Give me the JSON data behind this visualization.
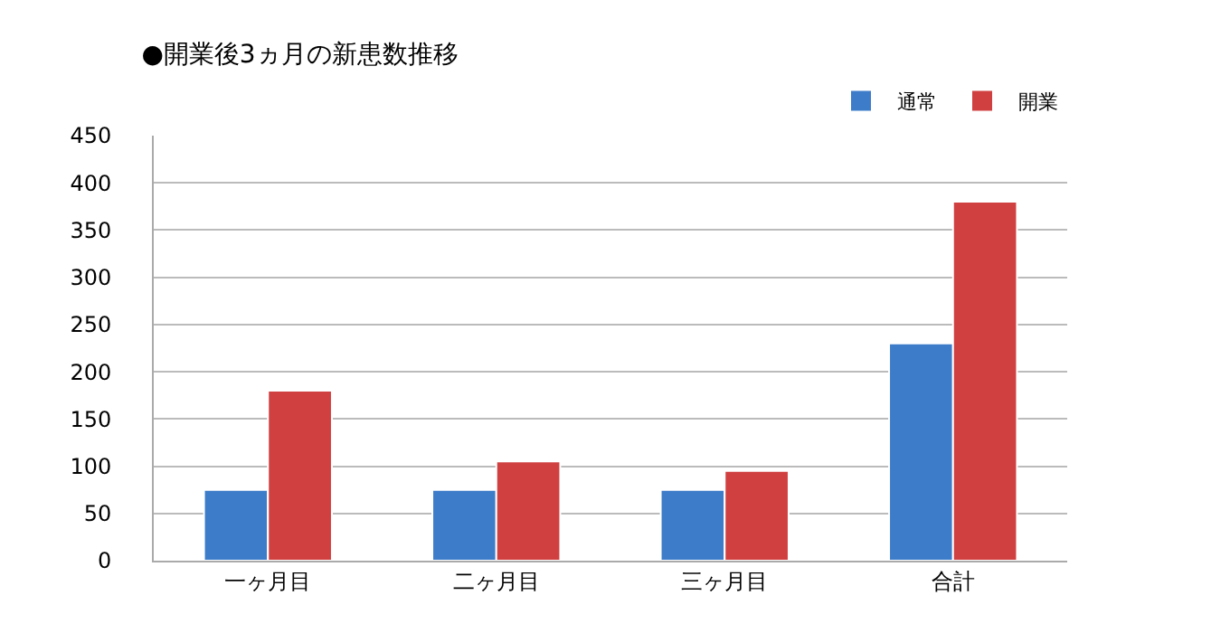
{
  "chart_data": {
    "type": "bar",
    "title": "●開業後3ヵ月の新患数推移",
    "categories": [
      "一ヶ月目",
      "二ヶ月目",
      "三ヶ月目",
      "合計"
    ],
    "series": [
      {
        "name": "通常",
        "color": "#3d7cc9",
        "values": [
          75,
          75,
          75,
          230
        ]
      },
      {
        "name": "開業",
        "color": "#d04040",
        "values": [
          180,
          105,
          95,
          380
        ]
      }
    ],
    "ylim": [
      0,
      450
    ],
    "yticks": [
      0,
      50,
      100,
      150,
      200,
      250,
      300,
      350,
      400,
      450
    ],
    "grid": "y",
    "legend": "top right"
  }
}
